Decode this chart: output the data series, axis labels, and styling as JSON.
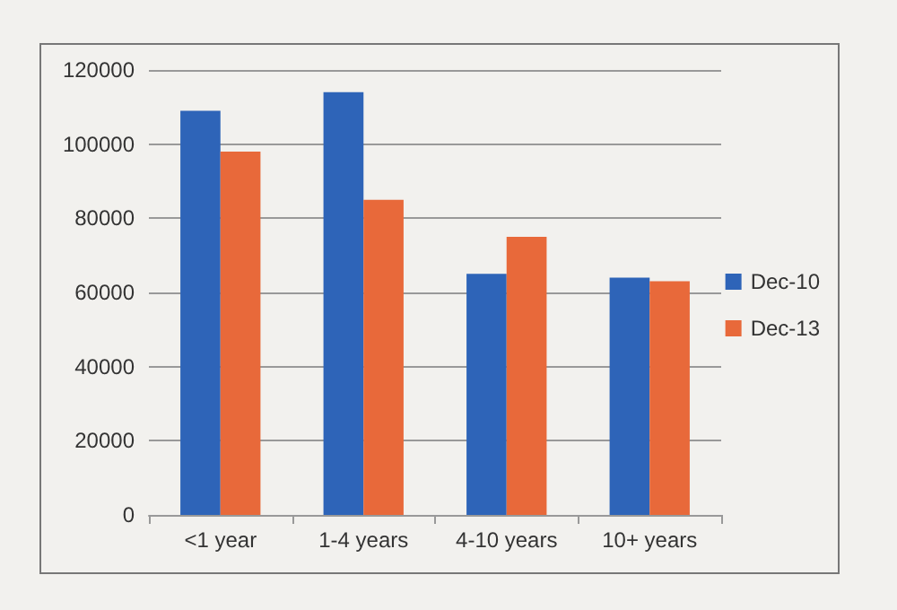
{
  "chart_data": {
    "type": "bar",
    "categories": [
      "<1 year",
      "1-4 years",
      "4-10 years",
      "10+ years"
    ],
    "series": [
      {
        "name": "Dec-10",
        "color": "#2e64b8",
        "values": [
          109000,
          114000,
          65000,
          64000
        ]
      },
      {
        "name": "Dec-13",
        "color": "#e8693a",
        "values": [
          98000,
          85000,
          75000,
          63000
        ]
      }
    ],
    "ylim": [
      0,
      120000
    ],
    "yticks": [
      0,
      20000,
      40000,
      60000,
      80000,
      100000,
      120000
    ],
    "grid": "y",
    "legend": "right"
  }
}
